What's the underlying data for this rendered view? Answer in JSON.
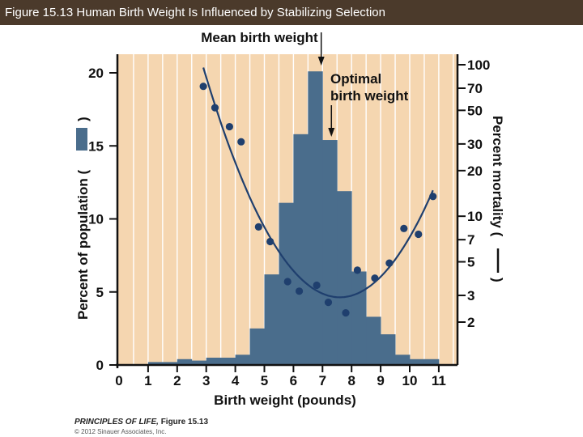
{
  "header": {
    "title": "Figure 15.13  Human Birth Weight Is Influenced by Stabilizing Selection"
  },
  "footer": {
    "book": "PRINCIPLES OF LIFE,",
    "figure": "Figure 15.13",
    "copyright": "© 2012 Sinauer Associates, Inc."
  },
  "chart_data": {
    "type": "bar",
    "xlabel": "Birth weight (pounds)",
    "ylabel": "Percent of population (",
    "y2label": "Percent mortality (",
    "xlim": [
      0,
      11.5
    ],
    "ylim": [
      0,
      21
    ],
    "x_ticks": [
      0,
      1,
      2,
      3,
      4,
      5,
      6,
      7,
      8,
      9,
      10,
      11
    ],
    "y_ticks": [
      0,
      5,
      10,
      15,
      20
    ],
    "y2_scale": "log",
    "y2_ticks": [
      2,
      3,
      5,
      7,
      10,
      20,
      30,
      50,
      70,
      100
    ],
    "grid": "vertical at half-pound intervals",
    "colors": {
      "plot_bg": "#f5d6b0",
      "bar": "#4a6d8c",
      "dots": "#1f3f6e",
      "grid": "#ffffff"
    },
    "bars": {
      "bin_width": 0.5,
      "x_start": [
        1.0,
        1.5,
        2.0,
        2.5,
        3.0,
        3.5,
        4.0,
        4.5,
        5.0,
        5.5,
        6.0,
        6.5,
        7.0,
        7.5,
        8.0,
        8.5,
        9.0,
        9.5,
        10.0,
        10.5
      ],
      "values": [
        0.2,
        0.2,
        0.4,
        0.3,
        0.5,
        0.5,
        0.7,
        2.5,
        6.2,
        11.1,
        15.8,
        20.1,
        15.4,
        11.9,
        6.4,
        3.3,
        2.1,
        0.7,
        0.4,
        0.4
      ]
    },
    "mortality": {
      "x": [
        2.9,
        3.3,
        3.8,
        4.2,
        4.8,
        5.2,
        5.8,
        6.2,
        6.8,
        7.2,
        7.8,
        8.2,
        8.8,
        9.3,
        9.8,
        10.3,
        10.8
      ],
      "values": [
        72,
        52,
        39,
        31,
        8.5,
        6.8,
        3.7,
        3.2,
        3.5,
        2.7,
        2.3,
        4.4,
        3.9,
        4.9,
        8.3,
        7.6,
        13.5
      ]
    },
    "annotations": {
      "mean_label": "Mean birth weight",
      "mean_x": 6.9,
      "optimal_label": [
        "Optimal",
        "birth weight"
      ],
      "optimal_x": 7.25
    }
  }
}
